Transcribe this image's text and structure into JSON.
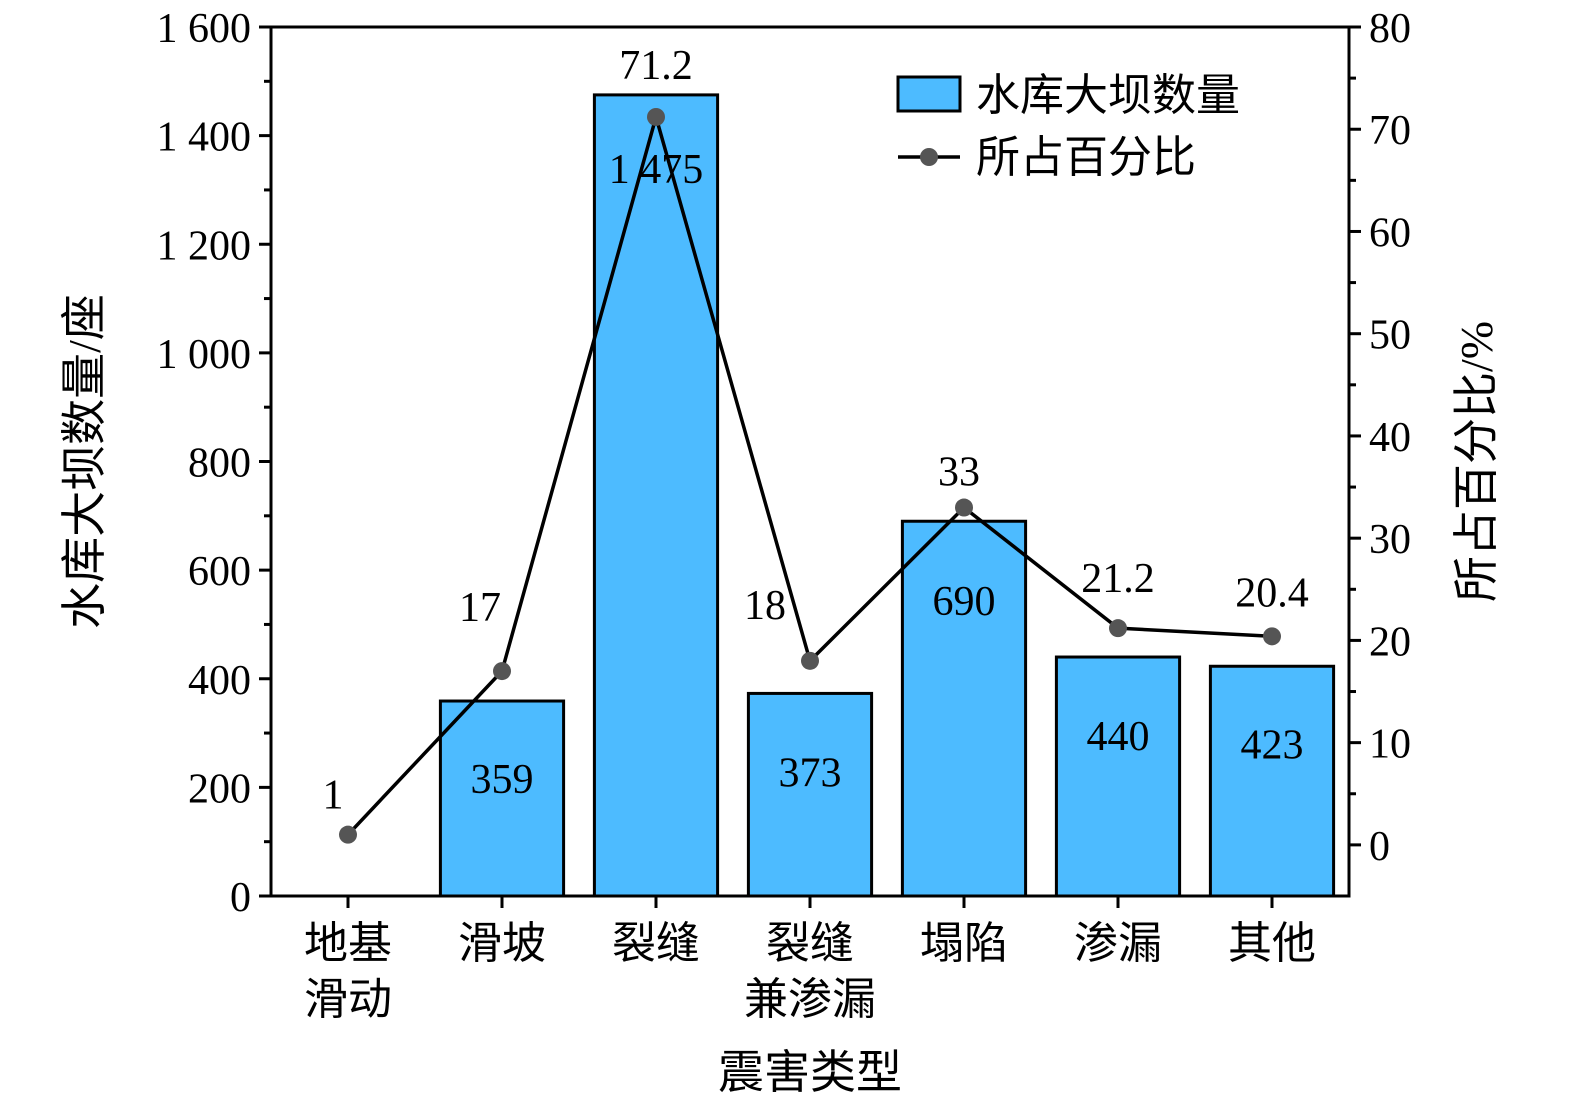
{
  "chart_data": {
    "type": "bar",
    "title": "",
    "xlabel": "震害类型",
    "ylabel": "水库大坝数量/座",
    "y2label": "所占百分比/%",
    "categories": [
      [
        "地基",
        "滑动"
      ],
      [
        "滑坡"
      ],
      [
        "裂缝"
      ],
      [
        "裂缝",
        "兼渗漏"
      ],
      [
        "塌陷"
      ],
      [
        "渗漏"
      ],
      [
        "其他"
      ]
    ],
    "series": [
      {
        "name": "水库大坝数量",
        "type": "bar",
        "axis": "left",
        "values": [
          0,
          359,
          1475,
          373,
          690,
          440,
          423
        ],
        "labels": [
          "",
          "359",
          "1 475",
          "373",
          "690",
          "440",
          "423"
        ],
        "color": "#4DBBFF"
      },
      {
        "name": "所占百分比",
        "type": "line",
        "axis": "right",
        "values": [
          1,
          17,
          71.2,
          18,
          33,
          21.2,
          20.4
        ],
        "labels": [
          "1",
          "17",
          "71.2",
          "18",
          "33",
          "21.2",
          "20.4"
        ],
        "color": "#000000",
        "marker_color": "#555555"
      }
    ],
    "ylim": [
      0,
      1600
    ],
    "yticks": [
      0,
      200,
      400,
      600,
      800,
      1000,
      1200,
      1400,
      1600
    ],
    "ytick_labels": [
      "0",
      "200",
      "400",
      "600",
      "800",
      "1 000",
      "1 200",
      "1 400",
      "1 600"
    ],
    "y2lim": [
      -5,
      80
    ],
    "y2ticks": [
      0,
      10,
      20,
      30,
      40,
      50,
      60,
      70,
      80
    ],
    "y2tick_labels": [
      "0",
      "10",
      "20",
      "30",
      "40",
      "50",
      "60",
      "70",
      "80"
    ],
    "legend_position": "top-right",
    "grid": false
  }
}
